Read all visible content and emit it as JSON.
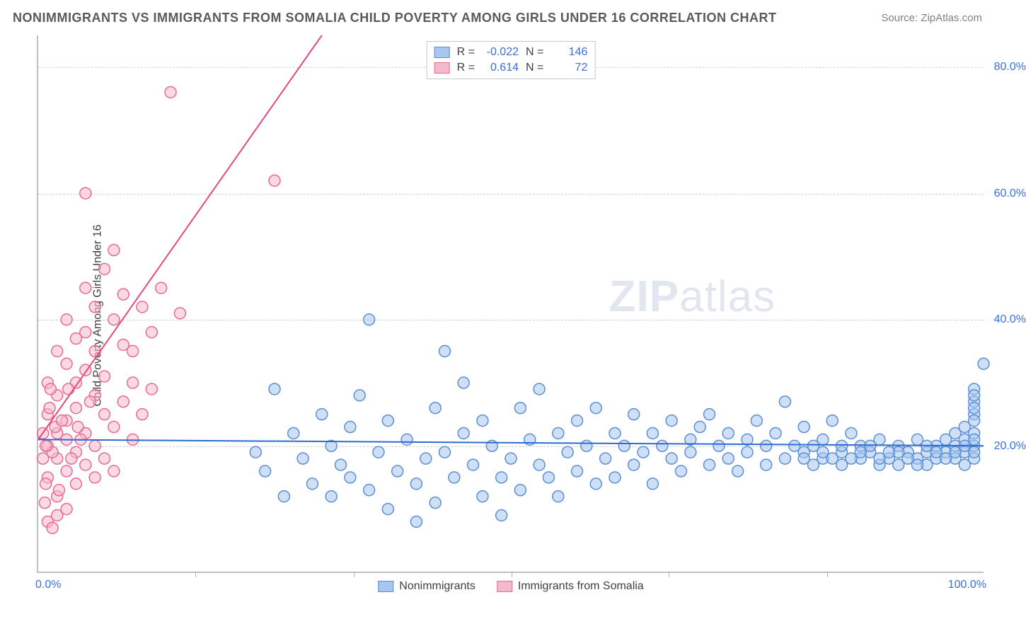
{
  "title": "NONIMMIGRANTS VS IMMIGRANTS FROM SOMALIA CHILD POVERTY AMONG GIRLS UNDER 16 CORRELATION CHART",
  "source": "Source: ZipAtlas.com",
  "ylabel": "Child Poverty Among Girls Under 16",
  "watermark_a": "ZIP",
  "watermark_b": "atlas",
  "chart": {
    "type": "scatter",
    "background_color": "#ffffff",
    "grid_color": "#d0d0d0",
    "axis_color": "#c0c0c0",
    "tick_color": "#3b6fd6",
    "xlim": [
      0,
      100
    ],
    "ylim": [
      0,
      85
    ],
    "xticks": [
      "0.0%",
      "100.0%"
    ],
    "yticks": [
      {
        "v": 20,
        "label": "20.0%"
      },
      {
        "v": 40,
        "label": "40.0%"
      },
      {
        "v": 60,
        "label": "60.0%"
      },
      {
        "v": 80,
        "label": "80.0%"
      }
    ],
    "inner_xticks_pct": [
      16.6,
      33.3,
      50,
      66.6,
      83.3
    ],
    "marker_radius": 8,
    "marker_stroke_width": 1.5,
    "trend_line_width": 2
  },
  "series": {
    "blue": {
      "label": "Nonimmigrants",
      "fill": "#a8c6ee",
      "stroke": "#5a8fd6",
      "fill_opacity": 0.55,
      "R": "-0.022",
      "N": "146",
      "trend": {
        "x1": 0,
        "y1": 21,
        "x2": 100,
        "y2": 20,
        "color": "#2e6bd0"
      },
      "points": [
        [
          23,
          19
        ],
        [
          24,
          16
        ],
        [
          25,
          29
        ],
        [
          26,
          12
        ],
        [
          27,
          22
        ],
        [
          28,
          18
        ],
        [
          29,
          14
        ],
        [
          30,
          25
        ],
        [
          31,
          20
        ],
        [
          31,
          12
        ],
        [
          32,
          17
        ],
        [
          33,
          23
        ],
        [
          33,
          15
        ],
        [
          34,
          28
        ],
        [
          35,
          40
        ],
        [
          35,
          13
        ],
        [
          36,
          19
        ],
        [
          37,
          24
        ],
        [
          37,
          10
        ],
        [
          38,
          16
        ],
        [
          39,
          21
        ],
        [
          40,
          14
        ],
        [
          40,
          8
        ],
        [
          41,
          18
        ],
        [
          42,
          26
        ],
        [
          42,
          11
        ],
        [
          43,
          35
        ],
        [
          43,
          19
        ],
        [
          44,
          15
        ],
        [
          45,
          22
        ],
        [
          45,
          30
        ],
        [
          46,
          17
        ],
        [
          47,
          12
        ],
        [
          47,
          24
        ],
        [
          48,
          20
        ],
        [
          49,
          15
        ],
        [
          49,
          9
        ],
        [
          50,
          18
        ],
        [
          51,
          26
        ],
        [
          51,
          13
        ],
        [
          52,
          21
        ],
        [
          53,
          17
        ],
        [
          53,
          29
        ],
        [
          54,
          15
        ],
        [
          55,
          22
        ],
        [
          55,
          12
        ],
        [
          56,
          19
        ],
        [
          57,
          24
        ],
        [
          57,
          16
        ],
        [
          58,
          20
        ],
        [
          59,
          14
        ],
        [
          59,
          26
        ],
        [
          60,
          18
        ],
        [
          61,
          22
        ],
        [
          61,
          15
        ],
        [
          62,
          20
        ],
        [
          63,
          17
        ],
        [
          63,
          25
        ],
        [
          64,
          19
        ],
        [
          65,
          22
        ],
        [
          65,
          14
        ],
        [
          66,
          20
        ],
        [
          67,
          18
        ],
        [
          67,
          24
        ],
        [
          68,
          16
        ],
        [
          69,
          21
        ],
        [
          69,
          19
        ],
        [
          70,
          23
        ],
        [
          71,
          17
        ],
        [
          71,
          25
        ],
        [
          72,
          20
        ],
        [
          73,
          18
        ],
        [
          73,
          22
        ],
        [
          74,
          16
        ],
        [
          75,
          21
        ],
        [
          75,
          19
        ],
        [
          76,
          24
        ],
        [
          77,
          17
        ],
        [
          77,
          20
        ],
        [
          78,
          22
        ],
        [
          79,
          18
        ],
        [
          79,
          27
        ],
        [
          80,
          20
        ],
        [
          81,
          19
        ],
        [
          81,
          23
        ],
        [
          82,
          17
        ],
        [
          83,
          21
        ],
        [
          83,
          18
        ],
        [
          84,
          24
        ],
        [
          85,
          19
        ],
        [
          85,
          17
        ],
        [
          86,
          22
        ],
        [
          87,
          18
        ],
        [
          87,
          20
        ],
        [
          88,
          19
        ],
        [
          89,
          21
        ],
        [
          89,
          17
        ],
        [
          90,
          18
        ],
        [
          91,
          20
        ],
        [
          91,
          17
        ],
        [
          92,
          19
        ],
        [
          93,
          18
        ],
        [
          93,
          21
        ],
        [
          94,
          17
        ],
        [
          94,
          19
        ],
        [
          95,
          18
        ],
        [
          95,
          20
        ],
        [
          96,
          19
        ],
        [
          96,
          21
        ],
        [
          97,
          18
        ],
        [
          97,
          22
        ],
        [
          97,
          20
        ],
        [
          98,
          19
        ],
        [
          98,
          23
        ],
        [
          98,
          21
        ],
        [
          98,
          17
        ],
        [
          99,
          25
        ],
        [
          99,
          20
        ],
        [
          99,
          27
        ],
        [
          99,
          22
        ],
        [
          99,
          29
        ],
        [
          99,
          18
        ],
        [
          99,
          24
        ],
        [
          99,
          21
        ],
        [
          99,
          26
        ],
        [
          99,
          28
        ],
        [
          100,
          33
        ],
        [
          99,
          19
        ],
        [
          98,
          20
        ],
        [
          97,
          19
        ],
        [
          96,
          18
        ],
        [
          95,
          19
        ],
        [
          94,
          20
        ],
        [
          93,
          17
        ],
        [
          92,
          18
        ],
        [
          91,
          19
        ],
        [
          90,
          19
        ],
        [
          89,
          18
        ],
        [
          88,
          20
        ],
        [
          87,
          19
        ],
        [
          86,
          18
        ],
        [
          85,
          20
        ],
        [
          84,
          18
        ],
        [
          83,
          19
        ],
        [
          82,
          20
        ],
        [
          81,
          18
        ]
      ]
    },
    "pink": {
      "label": "Immigrants from Somalia",
      "fill": "#f6b9cc",
      "stroke": "#e86a94",
      "fill_opacity": 0.55,
      "R": "0.614",
      "N": "72",
      "trend": {
        "x1": 0,
        "y1": 21,
        "x2": 30,
        "y2": 85,
        "color": "#e54a7c"
      },
      "points": [
        [
          1,
          20
        ],
        [
          1,
          25
        ],
        [
          1,
          15
        ],
        [
          1,
          30
        ],
        [
          2,
          22
        ],
        [
          2,
          18
        ],
        [
          2,
          35
        ],
        [
          2,
          12
        ],
        [
          2,
          28
        ],
        [
          3,
          21
        ],
        [
          3,
          33
        ],
        [
          3,
          16
        ],
        [
          3,
          40
        ],
        [
          3,
          24
        ],
        [
          4,
          30
        ],
        [
          4,
          19
        ],
        [
          4,
          37
        ],
        [
          4,
          14
        ],
        [
          4,
          26
        ],
        [
          5,
          32
        ],
        [
          5,
          22
        ],
        [
          5,
          45
        ],
        [
          5,
          17
        ],
        [
          5,
          38
        ],
        [
          6,
          28
        ],
        [
          6,
          20
        ],
        [
          6,
          42
        ],
        [
          6,
          15
        ],
        [
          6,
          35
        ],
        [
          7,
          25
        ],
        [
          7,
          48
        ],
        [
          7,
          18
        ],
        [
          7,
          31
        ],
        [
          8,
          51
        ],
        [
          8,
          23
        ],
        [
          8,
          40
        ],
        [
          8,
          16
        ],
        [
          9,
          36
        ],
        [
          9,
          27
        ],
        [
          9,
          44
        ],
        [
          10,
          21
        ],
        [
          10,
          30
        ],
        [
          10,
          35
        ],
        [
          11,
          42
        ],
        [
          11,
          25
        ],
        [
          12,
          38
        ],
        [
          12,
          29
        ],
        [
          13,
          45
        ],
        [
          14,
          76
        ],
        [
          15,
          41
        ],
        [
          0.5,
          18
        ],
        [
          0.5,
          22
        ],
        [
          0.8,
          14
        ],
        [
          1.2,
          26
        ],
        [
          1.5,
          19
        ],
        [
          1.8,
          23
        ],
        [
          0.7,
          11
        ],
        [
          1.3,
          29
        ],
        [
          2.5,
          24
        ],
        [
          3.5,
          18
        ],
        [
          4.5,
          21
        ],
        [
          5.5,
          27
        ],
        [
          2.2,
          13
        ],
        [
          3.2,
          29
        ],
        [
          4.2,
          23
        ],
        [
          5,
          60
        ],
        [
          25,
          62
        ],
        [
          1,
          8
        ],
        [
          2,
          9
        ],
        [
          3,
          10
        ],
        [
          1.5,
          7
        ],
        [
          0.8,
          20
        ]
      ]
    }
  },
  "legend_top": {
    "r_label": "R =",
    "n_label": "N ="
  }
}
